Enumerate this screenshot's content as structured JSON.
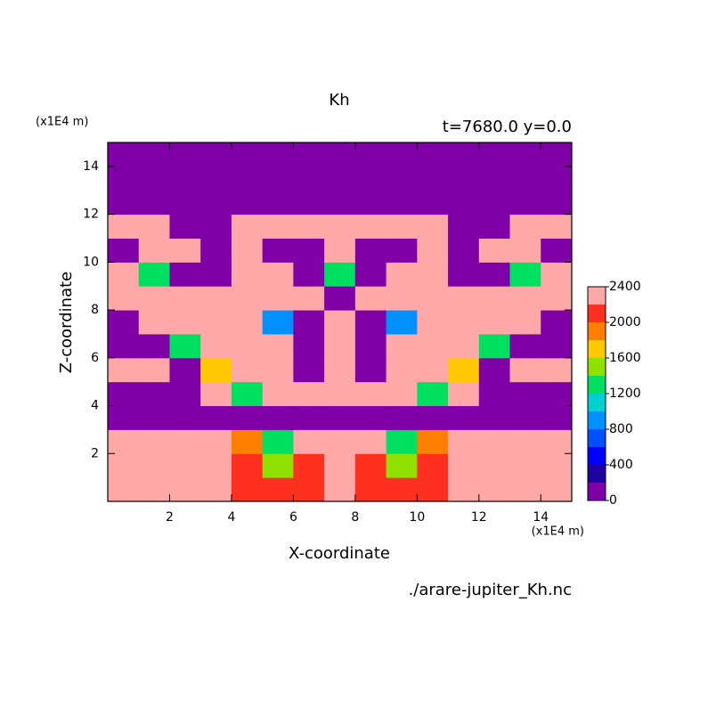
{
  "chart_data": {
    "type": "contour",
    "title": "Kh",
    "subtitle": "t=7680.0 y=0.0",
    "x_label": "X-coordinate",
    "y_label": "Z-coordinate",
    "x_unit": "(x1E4 m)",
    "y_unit": "(x1E4 m)",
    "source": "./arare-jupiter_Kh.nc",
    "xlim": [
      0,
      15
    ],
    "ylim": [
      0,
      15
    ],
    "xticks": [
      2,
      4,
      6,
      8,
      10,
      12,
      14
    ],
    "yticks": [
      2,
      4,
      6,
      8,
      10,
      12,
      14
    ],
    "x": [
      0.5,
      1.5,
      2.5,
      3.5,
      4.5,
      5.5,
      6.5,
      7.5,
      8.5,
      9.5,
      10.5,
      11.5,
      12.5,
      13.5,
      14.5
    ],
    "z": [
      0.5,
      1.5,
      2.5,
      3.5,
      4.5,
      5.5,
      6.5,
      7.5,
      8.5,
      9.5,
      10.5,
      11.5,
      12.5,
      13.5,
      14.5
    ],
    "values": [
      [
        2300,
        2300,
        2300,
        2300,
        2100,
        2100,
        2100,
        2300,
        2100,
        2100,
        2100,
        2300,
        2300,
        2300,
        2300
      ],
      [
        2300,
        2300,
        2300,
        2300,
        2100,
        1500,
        2100,
        2300,
        2100,
        1500,
        2100,
        2300,
        2300,
        2300,
        2300
      ],
      [
        2300,
        2300,
        2300,
        2300,
        1900,
        1300,
        2300,
        2300,
        2300,
        1300,
        1900,
        2300,
        2300,
        2300,
        2300
      ],
      [
        100,
        100,
        100,
        100,
        100,
        100,
        100,
        100,
        100,
        100,
        100,
        100,
        100,
        100,
        100
      ],
      [
        100,
        100,
        100,
        2300,
        1300,
        2300,
        2300,
        2300,
        2300,
        2300,
        1300,
        2300,
        100,
        100,
        100
      ],
      [
        2300,
        2300,
        100,
        1700,
        2300,
        2300,
        100,
        2300,
        100,
        2300,
        2300,
        1700,
        100,
        2300,
        2300
      ],
      [
        100,
        100,
        1300,
        2300,
        2300,
        2300,
        100,
        2300,
        100,
        2300,
        2300,
        2300,
        1300,
        100,
        100
      ],
      [
        100,
        2300,
        2300,
        2300,
        2300,
        900,
        100,
        2300,
        100,
        900,
        2300,
        2300,
        2300,
        2300,
        100
      ],
      [
        2300,
        2300,
        2300,
        2300,
        2300,
        2300,
        2300,
        100,
        2300,
        2300,
        2300,
        2300,
        2300,
        2300,
        2300
      ],
      [
        2300,
        1300,
        100,
        100,
        2300,
        2300,
        100,
        1300,
        100,
        2300,
        2300,
        100,
        100,
        1300,
        2300
      ],
      [
        100,
        2300,
        2300,
        100,
        2300,
        100,
        100,
        2300,
        100,
        100,
        2300,
        100,
        2300,
        2300,
        100
      ],
      [
        2300,
        2300,
        100,
        100,
        2300,
        2300,
        2300,
        2300,
        2300,
        2300,
        2300,
        100,
        100,
        2300,
        2300
      ],
      [
        100,
        100,
        100,
        100,
        100,
        100,
        100,
        100,
        100,
        100,
        100,
        100,
        100,
        100,
        100
      ],
      [
        100,
        100,
        100,
        100,
        100,
        100,
        100,
        100,
        100,
        100,
        100,
        100,
        100,
        100,
        100
      ],
      [
        100,
        100,
        100,
        100,
        100,
        100,
        100,
        100,
        100,
        100,
        100,
        100,
        100,
        100,
        100
      ]
    ],
    "levels": [
      0,
      200,
      400,
      600,
      800,
      1000,
      1200,
      1400,
      1600,
      1800,
      2000,
      2200,
      2400
    ],
    "colors": [
      "#8000a8",
      "#2000a0",
      "#0000ff",
      "#0050ff",
      "#0090ff",
      "#00d0d0",
      "#00e060",
      "#90e000",
      "#ffc800",
      "#ff8000",
      "#ff3020",
      "#ffa8a8"
    ],
    "colorbar_ticks": [
      0,
      400,
      800,
      1200,
      1600,
      2000,
      2400
    ]
  }
}
